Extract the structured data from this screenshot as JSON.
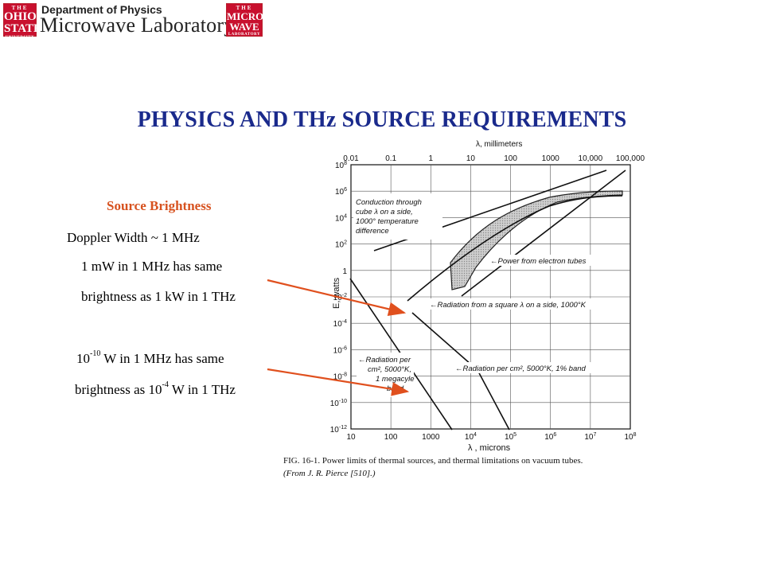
{
  "header": {
    "seal_left": {
      "top": "THE",
      "big": "OHIO",
      "big2": "STATE",
      "bottom": "UNIVERSITY"
    },
    "department": "Department of Physics",
    "lab": "Microwave Laboratory",
    "seal_right": {
      "top": "THE",
      "big": "MICRO",
      "big2": "WAVE",
      "bottom": "LABORATORY"
    }
  },
  "slide": {
    "title": "PHYSICS AND THz SOURCE REQUIREMENTS",
    "heading": "Source Brightness",
    "line1": "Doppler Width  ~ 1 MHz",
    "line2": "1 mW in 1 MHz has same",
    "line3": "brightness as 1 kW in 1 THz",
    "line4_pre": "10",
    "line4_sup": "-10",
    "line4_post": " W in 1 MHz has same",
    "line5_pre": "brightness as 10",
    "line5_sup": "-4",
    "line5_post": " W in 1 THz"
  },
  "figure": {
    "top_axis_label": "λ, millimeters",
    "top_ticks": [
      "0.01",
      "0.1",
      "1",
      "10",
      "100",
      "1000",
      "10,000",
      "100,000"
    ],
    "bottom_axis_label": "λ , microns",
    "bottom_ticks": [
      {
        "base": "10",
        "exp": ""
      },
      {
        "base": "100",
        "exp": ""
      },
      {
        "base": "1000",
        "exp": ""
      },
      {
        "base": "10",
        "exp": "4"
      },
      {
        "base": "10",
        "exp": "5"
      },
      {
        "base": "10",
        "exp": "6"
      },
      {
        "base": "10",
        "exp": "7"
      },
      {
        "base": "10",
        "exp": "8"
      }
    ],
    "y_axis_label": "E, watts",
    "y_ticks": [
      {
        "base": "10",
        "exp": "8"
      },
      {
        "base": "10",
        "exp": "6"
      },
      {
        "base": "10",
        "exp": "4"
      },
      {
        "base": "10",
        "exp": "2"
      },
      {
        "base": "1",
        "exp": ""
      },
      {
        "base": "10",
        "exp": "-2"
      },
      {
        "base": "10",
        "exp": "-4"
      },
      {
        "base": "10",
        "exp": "-6"
      },
      {
        "base": "10",
        "exp": "-8"
      },
      {
        "base": "10",
        "exp": "-10"
      },
      {
        "base": "10",
        "exp": "-12"
      }
    ],
    "annotations": {
      "conduction": [
        "Conduction through",
        "cube λ on a side,",
        "1000° temperature",
        "difference"
      ],
      "electron_tubes": "←Power from electron tubes",
      "square": "←Radiation from a square λ on a side, 1000°K",
      "radiation_per_cm2": [
        "←Radiation per",
        "cm², 5000°K,",
        "1 megacyle",
        "band"
      ],
      "one_percent": "←Radiation per cm², 5000°K, 1% band"
    },
    "caption_line1": "FIG. 16-1.  Power limits of thermal sources, and thermal limitations on vacuum tubes.",
    "caption_line2": "(From J. R. Pierce [510].)"
  },
  "colors": {
    "title": "#1a2a8c",
    "heading": "#d7521f",
    "arrow": "#e0501e",
    "seal": "#c8102e"
  }
}
